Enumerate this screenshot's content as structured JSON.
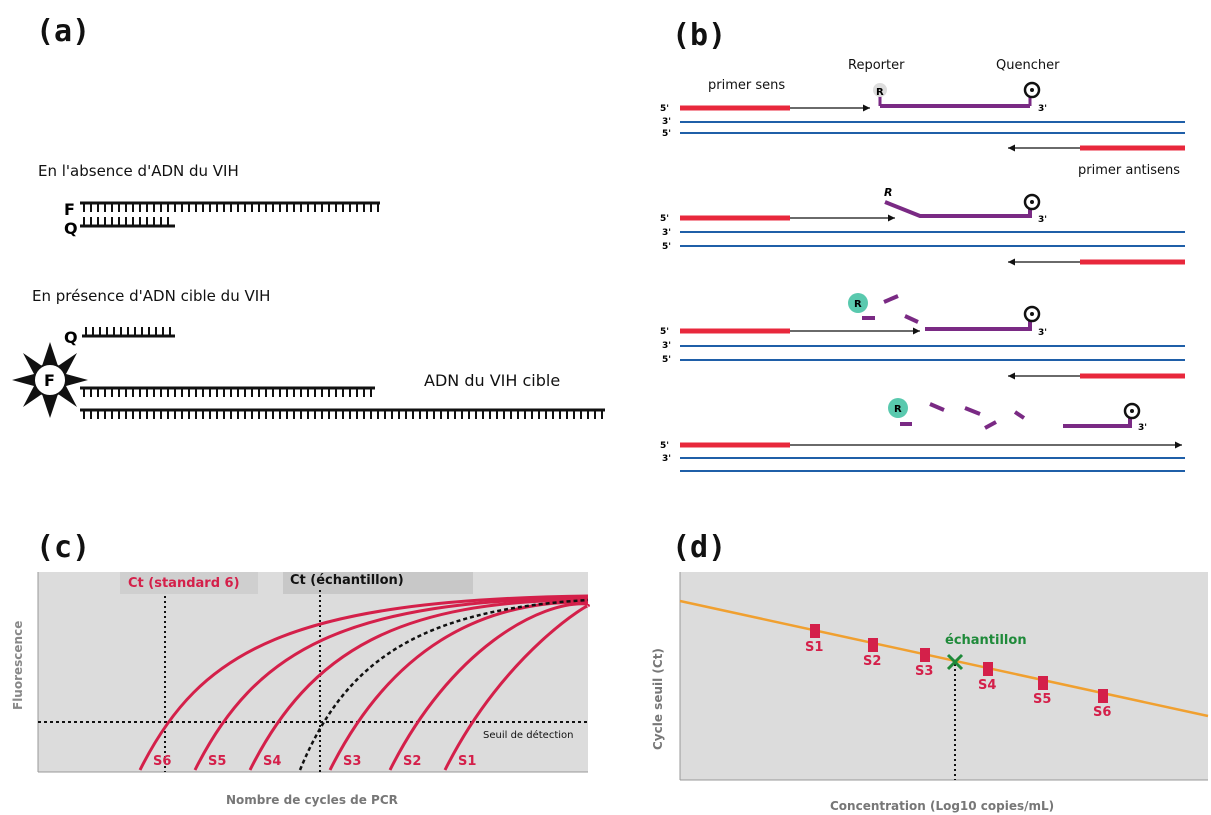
{
  "panels": {
    "a": {
      "letter": "(a)",
      "absence_text": "En l'absence d'ADN du VIH",
      "presence_text": "En présence d'ADN cible du VIH",
      "target_text": "ADN du VIH cible",
      "fluor_label": "F",
      "quencher_label": "Q"
    },
    "b": {
      "letter": "(b)",
      "reporter": "Reporter",
      "quencher": "Quencher",
      "primer_sens": "primer sens",
      "primer_antisens": "primer antisens",
      "five_prime": "5'",
      "three_prime": "3'",
      "r_label": "R"
    },
    "c": {
      "letter": "(c)",
      "ct_standard": "Ct (standard 6)",
      "ct_sample": "Ct (échantillon)",
      "threshold_label": "Seuil de détection",
      "ylabel": "Fluorescence",
      "xlabel": "Nombre de cycles de PCR",
      "standards": [
        "S6",
        "S5",
        "S4",
        "S3",
        "S2",
        "S1"
      ]
    },
    "d": {
      "letter": "(d)",
      "ylabel": "Cycle seuil (Ct)",
      "xlabel": "Concentration (Log10 copies/mL)",
      "sample_label": "échantillon",
      "standards": [
        "S1",
        "S2",
        "S3",
        "S4",
        "S5",
        "S6"
      ]
    }
  },
  "colors": {
    "red": "#e8283c",
    "purple": "#7a2a84",
    "blue": "#1f5fa8",
    "curve": "#d4204a",
    "orange": "#f0a030",
    "green": "#1f8a3a",
    "plot_bg": "#dcdcdc"
  }
}
